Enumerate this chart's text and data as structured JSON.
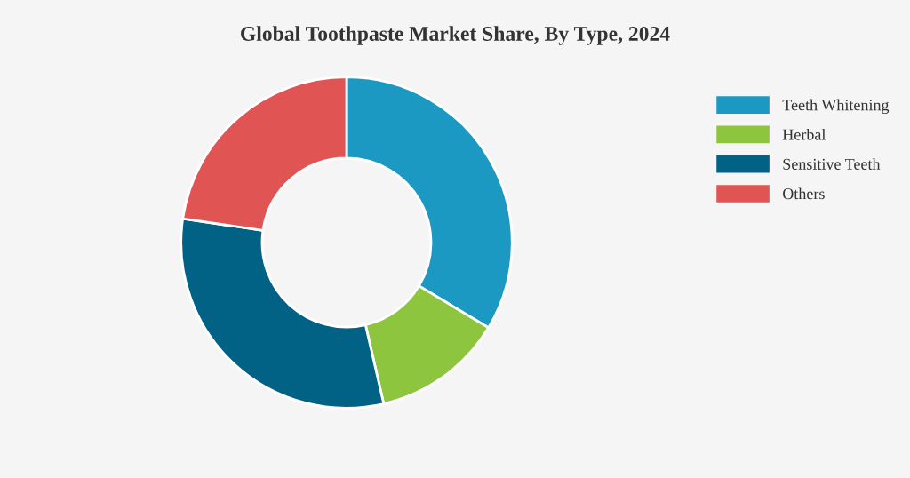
{
  "chart_data": {
    "type": "donut",
    "title": "Global Toothpaste Market Share, By Type, 2024",
    "categories": [
      "Teeth Whitening",
      "Herbal",
      "Sensitive Teeth",
      "Others"
    ],
    "values": [
      33.6,
      12.8,
      30.9,
      22.7
    ],
    "colors": [
      "#1c99c3",
      "#8dc53f",
      "#016286",
      "#e05454"
    ],
    "legend": "top right"
  }
}
